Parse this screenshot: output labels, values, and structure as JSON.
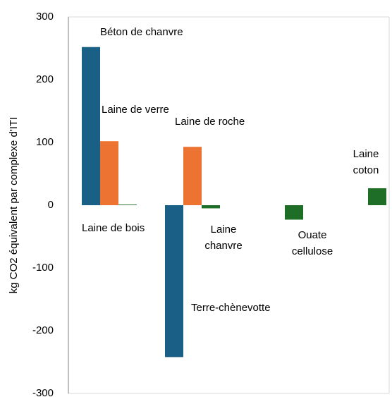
{
  "chart_data": {
    "type": "bar",
    "y_label": "kg CO2 équivalent par complexe d'ITI",
    "categories": [
      null,
      null,
      null,
      null
    ],
    "series": [
      {
        "color": "#1a5f85",
        "values": [
          252,
          -242,
          null,
          null
        ],
        "point_labels": [
          "Béton de chanvre",
          "Terre-chènevotte",
          null,
          null
        ]
      },
      {
        "color": "#ed7332",
        "values": [
          102,
          93,
          null,
          null
        ],
        "point_labels": [
          "Laine de verre",
          "Laine de roche",
          null,
          null
        ]
      },
      {
        "color": "#1e6e28",
        "values": [
          1,
          -5,
          -23,
          27
        ],
        "point_labels": [
          "Laine de bois",
          "Laine\nchanvre",
          "Ouate\ncellulose",
          "Laine\ncoton"
        ]
      }
    ],
    "ylim": [
      -300,
      300
    ],
    "yticks": [
      -300,
      -200,
      -100,
      0,
      100,
      200,
      300
    ],
    "grid": false
  }
}
